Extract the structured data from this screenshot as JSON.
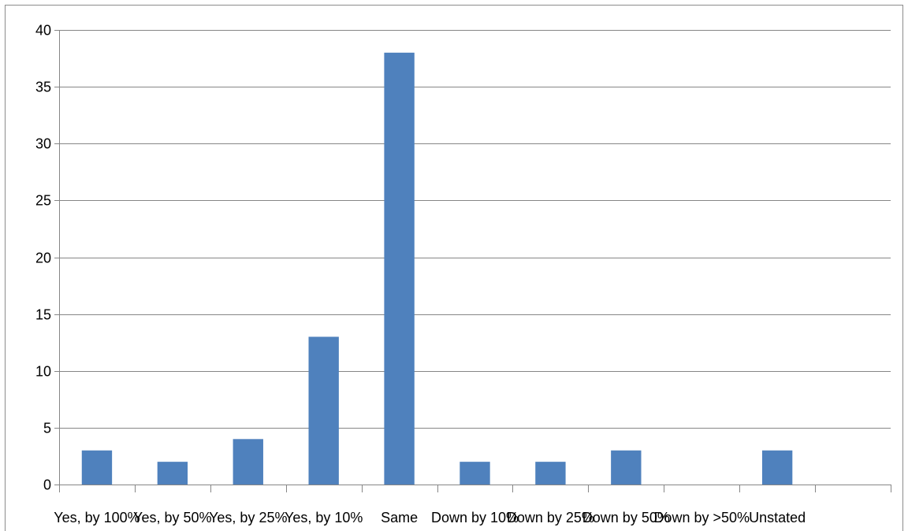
{
  "chart_data": {
    "type": "bar",
    "title": "",
    "xlabel": "",
    "ylabel": "",
    "categories": [
      "Yes, by 100%",
      "Yes, by 50%",
      "Yes, by 25%",
      "Yes, by 10%",
      "Same",
      "Down by 10%",
      "Down by 25%",
      "Down by 50%",
      "Down by >50%",
      "Unstated",
      ""
    ],
    "values": [
      3,
      2,
      4,
      13,
      38,
      2,
      2,
      3,
      0,
      3,
      0
    ],
    "ylim": [
      0,
      40
    ],
    "yticks": [
      0,
      5,
      10,
      15,
      20,
      25,
      30,
      35,
      40
    ],
    "grid": true,
    "legend": "none",
    "colors": {
      "bar": "#4f81bd",
      "gridline": "#868686",
      "axis": "#868686"
    }
  }
}
